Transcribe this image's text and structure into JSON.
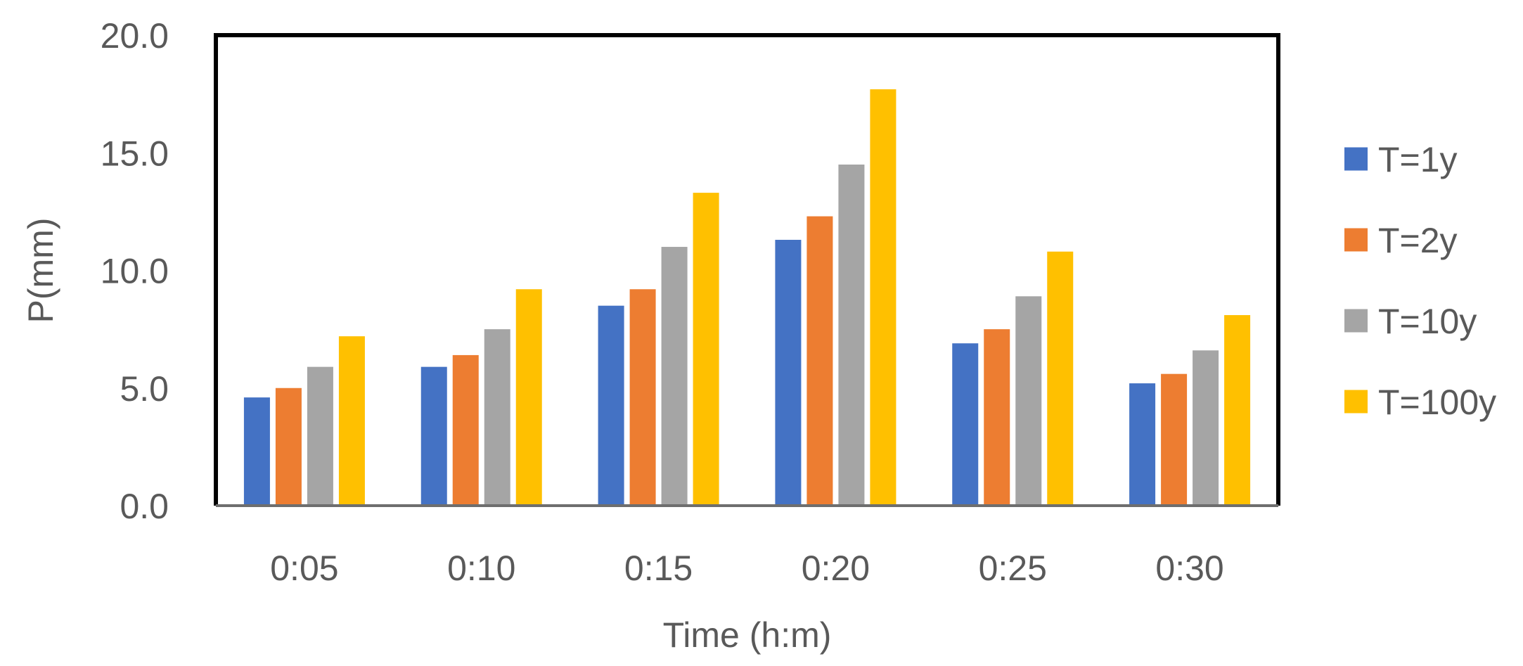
{
  "chart_data": {
    "type": "bar",
    "title": "",
    "xlabel": "Time (h:m)",
    "ylabel": "P(mm)",
    "categories": [
      "0:05",
      "0:10",
      "0:15",
      "0:20",
      "0:25",
      "0:30"
    ],
    "series": [
      {
        "name": "T=1y",
        "color": "#4472C4",
        "values": [
          4.6,
          5.9,
          8.5,
          11.3,
          6.9,
          5.2
        ]
      },
      {
        "name": "T=2y",
        "color": "#ED7D31",
        "values": [
          5.0,
          6.4,
          9.2,
          12.3,
          7.5,
          5.6
        ]
      },
      {
        "name": "T=10y",
        "color": "#A5A5A5",
        "values": [
          5.9,
          7.5,
          11.0,
          14.5,
          8.9,
          6.6
        ]
      },
      {
        "name": "T=100y",
        "color": "#FFC000",
        "values": [
          7.2,
          9.2,
          13.3,
          17.7,
          10.8,
          8.1
        ]
      }
    ],
    "ylim": [
      0,
      20
    ],
    "yticks": [
      "0.0",
      "5.0",
      "10.0",
      "15.0",
      "20.0"
    ],
    "grid": false,
    "legend_position": "right"
  }
}
